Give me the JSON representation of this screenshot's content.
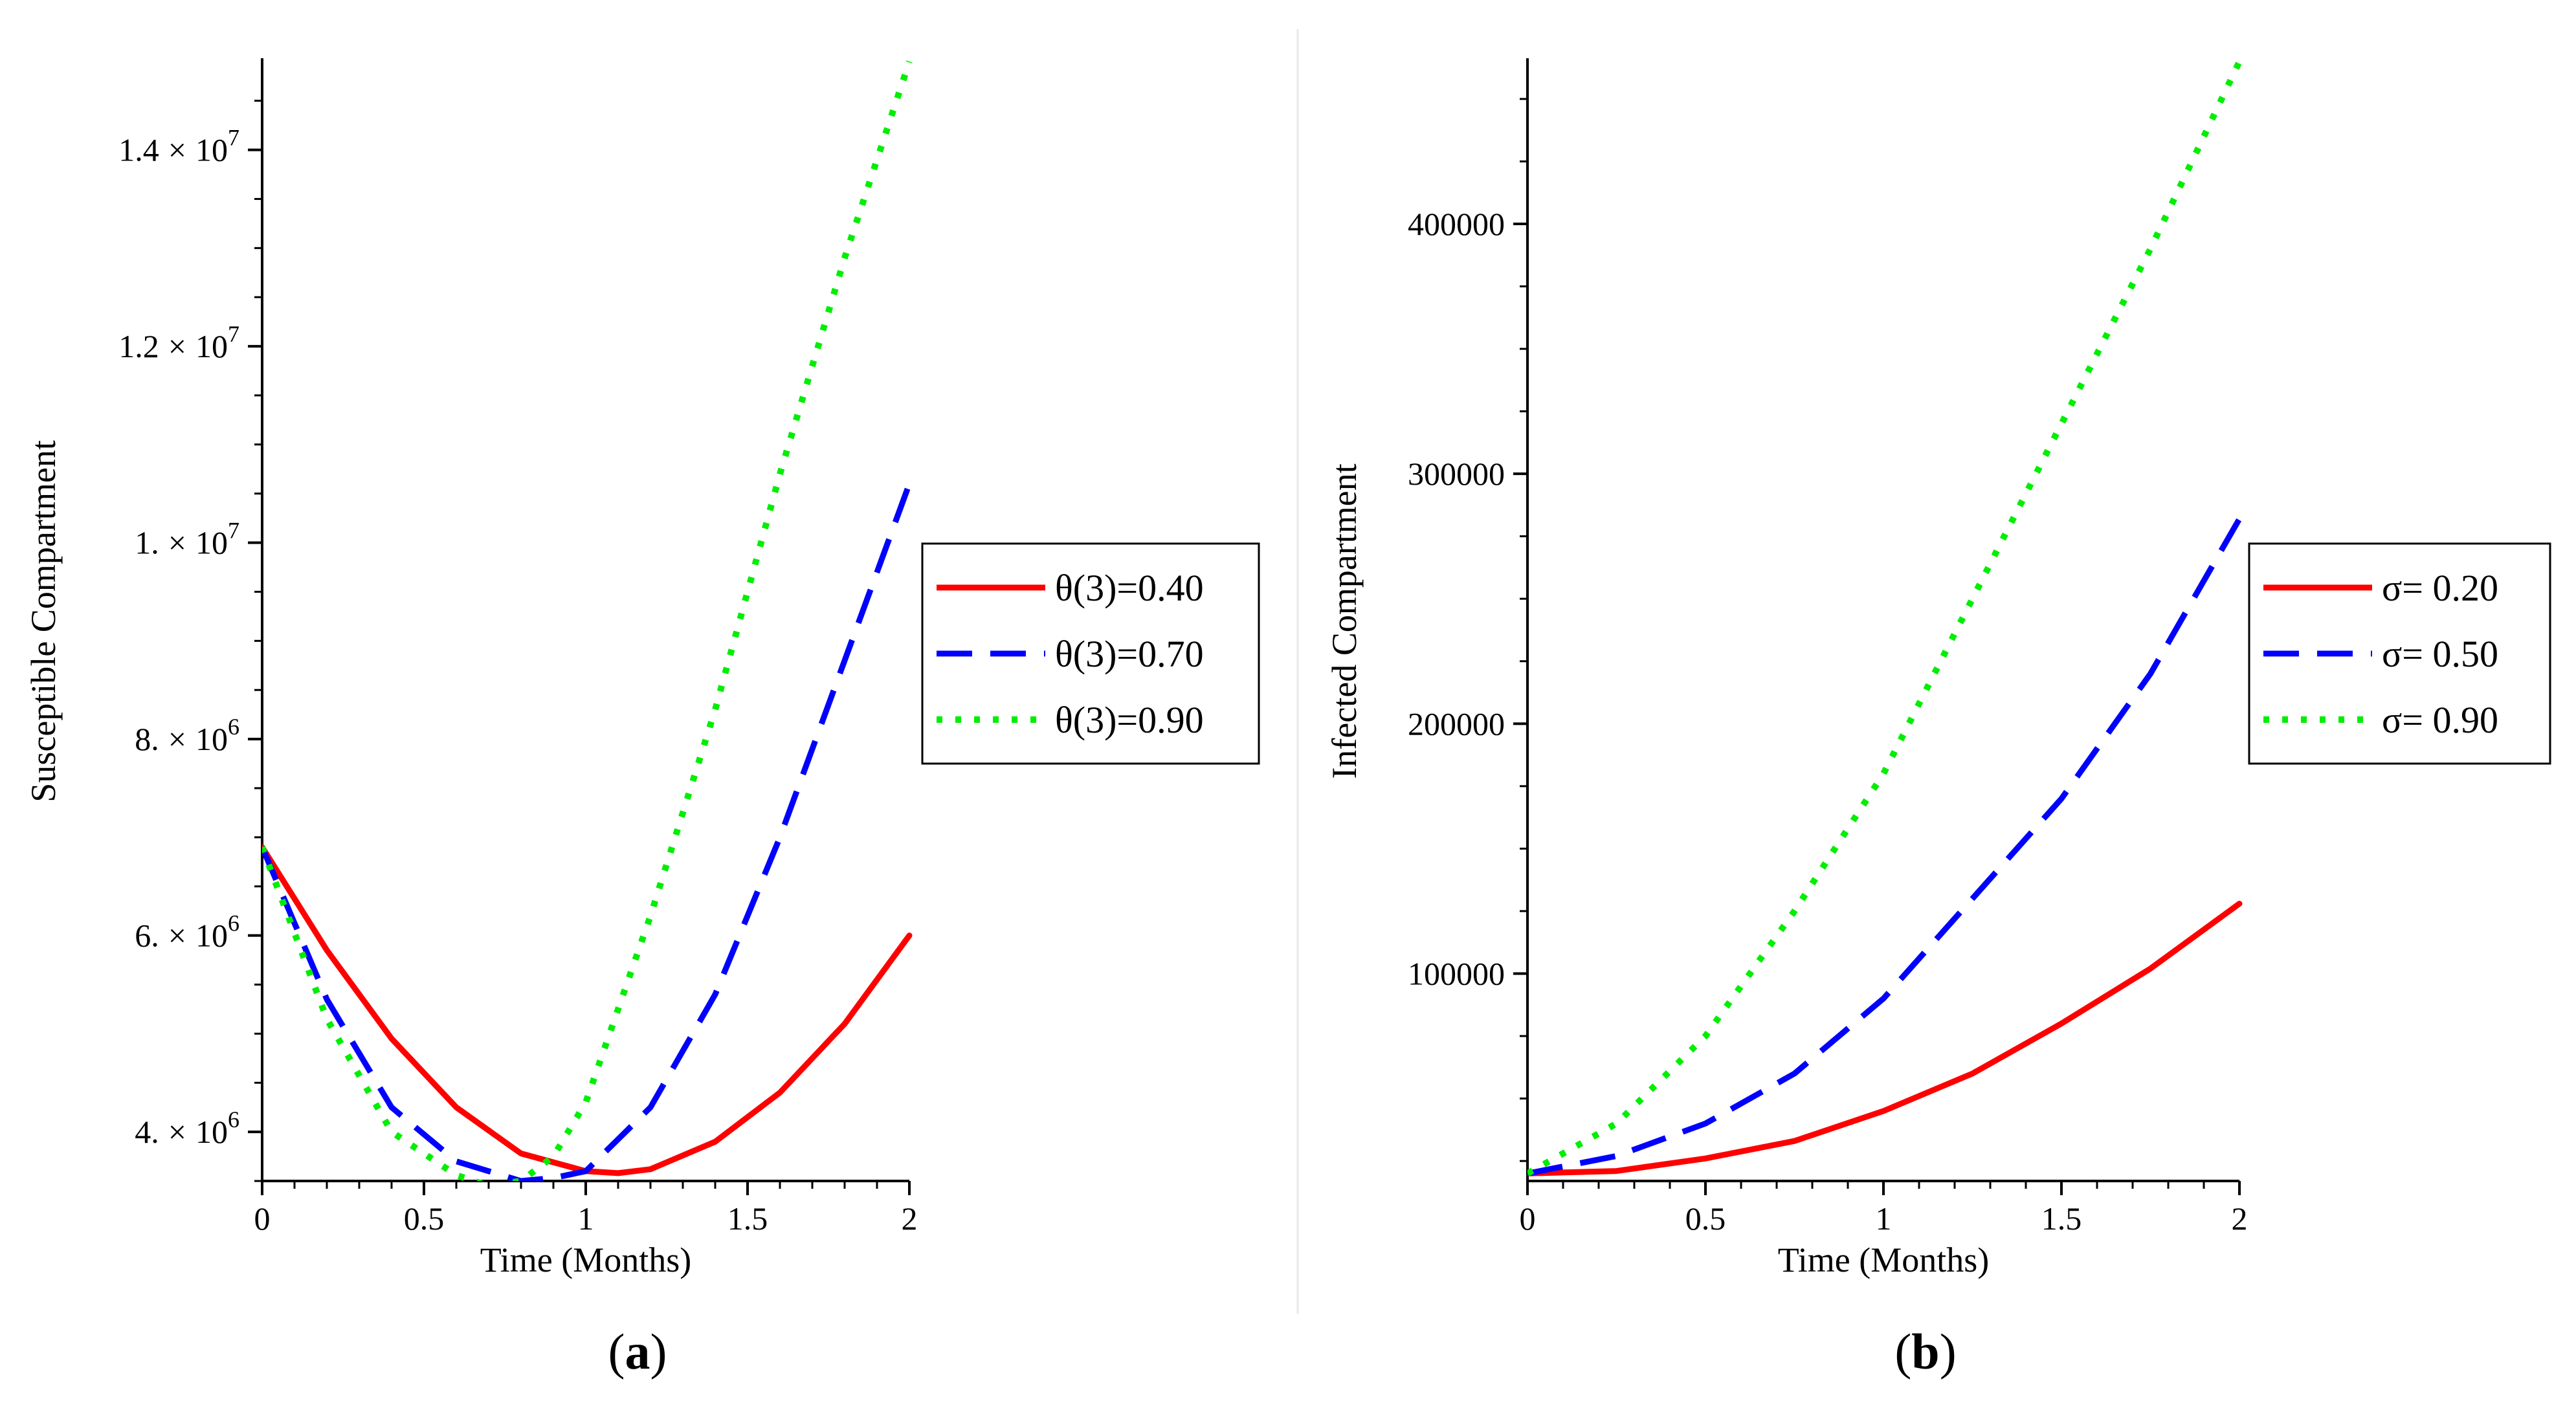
{
  "chart_data": [
    {
      "id": "a",
      "type": "line",
      "caption_open": "(",
      "caption_letter": "a",
      "caption_close": ")",
      "xlabel": "Time (Months)",
      "ylabel": "Susceptible Compartment",
      "xlim": [
        0,
        2
      ],
      "ylim": [
        3500000,
        14900000
      ],
      "xticks": [
        0,
        0.5,
        1,
        1.5,
        2
      ],
      "xtick_labels": [
        "0",
        "0.5",
        "1",
        "1.5",
        "2"
      ],
      "yticks": [
        4000000,
        6000000,
        8000000,
        10000000,
        12000000,
        14000000
      ],
      "ytick_mantissa": [
        "4.",
        "6.",
        "8.",
        "1.",
        "1.2",
        "1.4"
      ],
      "ytick_exponent": [
        "6",
        "6",
        "6",
        "7",
        "7",
        "7"
      ],
      "y_times_sign": "×",
      "y_base": "10",
      "legend_position": "right-middle",
      "series": [
        {
          "name": "θ(3)=0.40",
          "color": "#ff0000",
          "style": "solid",
          "x": [
            0,
            0.2,
            0.4,
            0.6,
            0.8,
            1.0,
            1.1,
            1.2,
            1.4,
            1.6,
            1.8,
            2.0
          ],
          "values": [
            6900000,
            5850000,
            4950000,
            4250000,
            3780000,
            3600000,
            3580000,
            3620000,
            3900000,
            4400000,
            5100000,
            6000000
          ]
        },
        {
          "name": "θ(3)=0.70",
          "color": "#0000ff",
          "style": "dash",
          "x": [
            0,
            0.2,
            0.4,
            0.6,
            0.8,
            0.9,
            1.0,
            1.2,
            1.4,
            1.6,
            1.8,
            2.0
          ],
          "values": [
            6900000,
            5350000,
            4250000,
            3700000,
            3500000,
            3530000,
            3600000,
            4250000,
            5400000,
            7000000,
            8800000,
            10600000
          ]
        },
        {
          "name": "θ(3)=0.90",
          "color": "#00ee00",
          "style": "dot",
          "x": [
            0,
            0.2,
            0.4,
            0.6,
            0.7,
            0.8,
            0.9,
            1.0,
            1.2,
            1.4,
            1.6,
            1.8,
            2.0
          ],
          "values": [
            6900000,
            5150000,
            4000000,
            3560000,
            3450000,
            3500000,
            3750000,
            4300000,
            6200000,
            8300000,
            10700000,
            12900000,
            14900000
          ]
        }
      ]
    },
    {
      "id": "b",
      "type": "line",
      "caption_open": "(",
      "caption_letter": "b",
      "caption_close": ")",
      "xlabel": "Time (Months)",
      "ylabel": "Infected Compartment",
      "xlim": [
        0,
        2
      ],
      "ylim": [
        17000,
        465000
      ],
      "xticks": [
        0,
        0.5,
        1,
        1.5,
        2
      ],
      "xtick_labels": [
        "0",
        "0.5",
        "1",
        "1.5",
        "2"
      ],
      "yticks": [
        100000,
        200000,
        300000,
        400000
      ],
      "ytick_labels": [
        "100000",
        "200000",
        "300000",
        "400000"
      ],
      "legend_position": "right-middle",
      "series": [
        {
          "name": "σ= 0.20",
          "color": "#ff0000",
          "style": "solid",
          "x": [
            0,
            0.25,
            0.5,
            0.75,
            1.0,
            1.25,
            1.5,
            1.75,
            2.0
          ],
          "values": [
            20000,
            21000,
            26000,
            33000,
            45000,
            60000,
            80000,
            102000,
            128000
          ]
        },
        {
          "name": "σ= 0.50",
          "color": "#0000ff",
          "style": "dash",
          "x": [
            0,
            0.25,
            0.5,
            0.75,
            1.0,
            1.25,
            1.5,
            1.75,
            2.0
          ],
          "values": [
            20000,
            27000,
            40000,
            60000,
            90000,
            130000,
            170000,
            220000,
            282000
          ]
        },
        {
          "name": "σ= 0.90",
          "color": "#00ee00",
          "style": "dot",
          "x": [
            0,
            0.25,
            0.5,
            0.75,
            1.0,
            1.25,
            1.5,
            1.75,
            2.0
          ],
          "values": [
            20000,
            40000,
            75000,
            125000,
            180000,
            250000,
            320000,
            390000,
            465000
          ]
        }
      ]
    }
  ]
}
